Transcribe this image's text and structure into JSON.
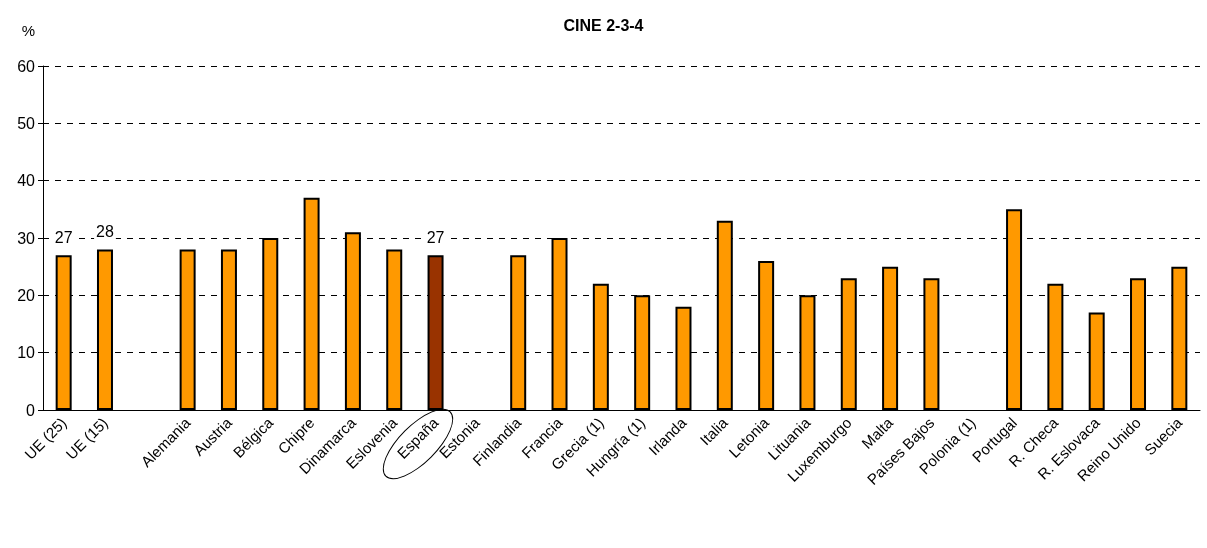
{
  "chart_data": {
    "type": "bar",
    "title": "CINE 2-3-4",
    "ylabel": "%",
    "categories": [
      "UE (25)",
      "UE (15)",
      null,
      "Alemania",
      "Austria",
      "Bélgica",
      "Chipre",
      "Dinamarca",
      "Eslovenia",
      "España",
      "Estonia",
      "Finlandia",
      "Francia",
      "Grecia (1)",
      "Hungría (1)",
      "Irlanda",
      "Italia",
      "Letonia",
      "Lituania",
      "Luxemburgo",
      "Malta",
      "Países Bajos",
      "Polonia (1)",
      "Portugal",
      "R. Checa",
      "R. Eslovaca",
      "Reino Unido",
      "Suecia"
    ],
    "values": [
      27,
      28,
      null,
      28,
      28,
      30,
      37,
      31,
      28,
      27,
      null,
      27,
      30,
      22,
      20,
      18,
      33,
      26,
      20,
      23,
      25,
      23,
      null,
      35,
      22,
      17,
      23,
      25
    ],
    "colors": [
      "#ff9900",
      "#ff9900",
      "#ff9900",
      "#ff9900",
      "#ff9900",
      "#ff9900",
      "#ff9900",
      "#ff9900",
      "#ff9900",
      "#993300",
      "#ff9900",
      "#ff9900",
      "#ff9900",
      "#ff9900",
      "#ff9900",
      "#ff9900",
      "#ff9900",
      "#ff9900",
      "#ff9900",
      "#ff9900",
      "#ff9900",
      "#ff9900",
      "#ff9900",
      "#ff9900",
      "#ff9900",
      "#ff9900",
      "#ff9900",
      "#ff9900"
    ],
    "value_labels": [
      "27",
      "28",
      null,
      null,
      null,
      null,
      null,
      null,
      null,
      "27",
      null,
      null,
      null,
      null,
      null,
      null,
      null,
      null,
      null,
      null,
      null,
      null,
      null,
      null,
      null,
      null,
      null,
      null
    ],
    "ylim": [
      0,
      60
    ],
    "yticks": [
      0,
      10,
      20,
      30,
      40,
      50,
      60
    ],
    "grid": "y"
  }
}
